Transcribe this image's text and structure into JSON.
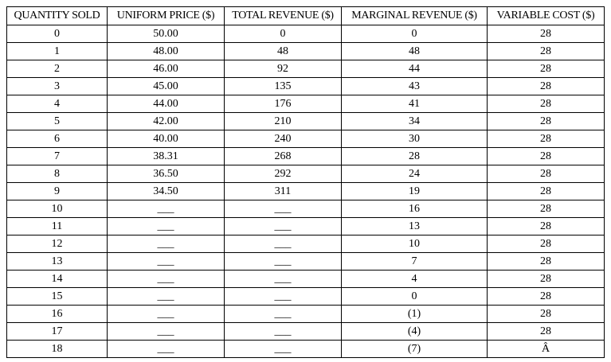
{
  "table": {
    "header": [
      "QUANTITY SOLD",
      "UNIFORM PRICE ($)",
      "TOTAL REVENUE ($)",
      "MARGINAL REVENUE ($)",
      "VARIABLE COST ($)"
    ],
    "rows": [
      [
        "0",
        "50.00",
        "0",
        "0",
        "28"
      ],
      [
        "1",
        "48.00",
        "48",
        "48",
        "28"
      ],
      [
        "2",
        "46.00",
        "92",
        "44",
        "28"
      ],
      [
        "3",
        "45.00",
        "135",
        "43",
        "28"
      ],
      [
        "4",
        "44.00",
        "176",
        "41",
        "28"
      ],
      [
        "5",
        "42.00",
        "210",
        "34",
        "28"
      ],
      [
        "6",
        "40.00",
        "240",
        "30",
        "28"
      ],
      [
        "7",
        "38.31",
        "268",
        "28",
        "28"
      ],
      [
        "8",
        "36.50",
        "292",
        "24",
        "28"
      ],
      [
        "9",
        "34.50",
        "311",
        "19",
        "28"
      ],
      [
        "10",
        "___",
        "___",
        "16",
        "28"
      ],
      [
        "11",
        "___",
        "___",
        "13",
        "28"
      ],
      [
        "12",
        "___",
        "___",
        "10",
        "28"
      ],
      [
        "13",
        "___",
        "___",
        "7",
        "28"
      ],
      [
        "14",
        "___",
        "___",
        "4",
        "28"
      ],
      [
        "15",
        "___",
        "___",
        "0",
        "28"
      ],
      [
        "16",
        "___",
        "___",
        "(1)",
        "28"
      ],
      [
        "17",
        "___",
        "___",
        "(4)",
        "28"
      ],
      [
        "18",
        "___",
        "___",
        "(7)",
        "Â"
      ]
    ]
  }
}
